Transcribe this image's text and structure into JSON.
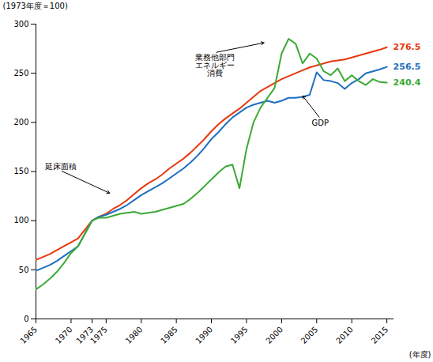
{
  "chart_data": {
    "type": "line",
    "xlabel": "(年度)",
    "ylabel": "(1973年度＝100)",
    "xlim": [
      1965,
      2016
    ],
    "ylim": [
      0,
      300
    ],
    "xticks": [
      1965,
      1970,
      1973,
      1975,
      1980,
      1985,
      1990,
      1995,
      2000,
      2005,
      2010,
      2015
    ],
    "yticks": [
      0,
      50,
      100,
      150,
      200,
      250,
      300
    ],
    "grid": false,
    "x": [
      1965,
      1966,
      1967,
      1968,
      1969,
      1970,
      1971,
      1972,
      1973,
      1974,
      1975,
      1976,
      1977,
      1978,
      1979,
      1980,
      1981,
      1982,
      1983,
      1984,
      1985,
      1986,
      1987,
      1988,
      1989,
      1990,
      1991,
      1992,
      1993,
      1994,
      1995,
      1996,
      1997,
      1998,
      1999,
      2000,
      2001,
      2002,
      2003,
      2004,
      2005,
      2006,
      2007,
      2008,
      2009,
      2010,
      2011,
      2012,
      2013,
      2014,
      2015
    ],
    "series": [
      {
        "name": "276.5",
        "color": "#e8380d",
        "values": [
          60,
          63,
          66,
          70,
          74,
          78,
          82,
          91,
          100,
          104,
          107,
          112,
          116,
          121,
          127,
          133,
          138,
          142,
          147,
          153,
          158,
          163,
          169,
          176,
          183,
          191,
          198,
          204,
          209,
          214,
          220,
          226,
          232,
          236,
          240,
          244,
          247,
          250,
          253,
          256,
          258,
          260,
          262,
          263,
          264,
          266,
          268,
          270,
          272,
          274,
          276.5
        ]
      },
      {
        "name": "256.5",
        "color": "#1e6fbf",
        "values": [
          49,
          52,
          55,
          59,
          64,
          69,
          74,
          87,
          100,
          104,
          106,
          109,
          112,
          116,
          121,
          126,
          130,
          134,
          138,
          143,
          148,
          153,
          159,
          166,
          174,
          183,
          190,
          198,
          205,
          210,
          215,
          218,
          220,
          222,
          220,
          222,
          225,
          225,
          226,
          228,
          251,
          243,
          242,
          240,
          234,
          240,
          244,
          250,
          252,
          254,
          256.5
        ]
      },
      {
        "name": "240.4",
        "color": "#3aaa35",
        "values": [
          30,
          35,
          41,
          48,
          57,
          67,
          74,
          87,
          100,
          103,
          103,
          105,
          107,
          108,
          109,
          107,
          108,
          109,
          111,
          113,
          115,
          117,
          122,
          128,
          135,
          142,
          149,
          155,
          157,
          133,
          173,
          200,
          215,
          225,
          235,
          270,
          285,
          280,
          260,
          270,
          265,
          252,
          248,
          255,
          242,
          248,
          242,
          238,
          244,
          241,
          240.4
        ]
      }
    ],
    "annotations": [
      {
        "text": "業務他部門\nエネルギー\n消費",
        "x": 1997.5,
        "y": 281,
        "text_x": 1990.5,
        "text_y": 271
      },
      {
        "text": "延床面積",
        "x": 1975.5,
        "y": 128,
        "text_x": 1968.5,
        "text_y": 151
      },
      {
        "text": "GDP",
        "x": 2003,
        "y": 227,
        "text_x": 2005.5,
        "text_y": 204
      }
    ]
  }
}
